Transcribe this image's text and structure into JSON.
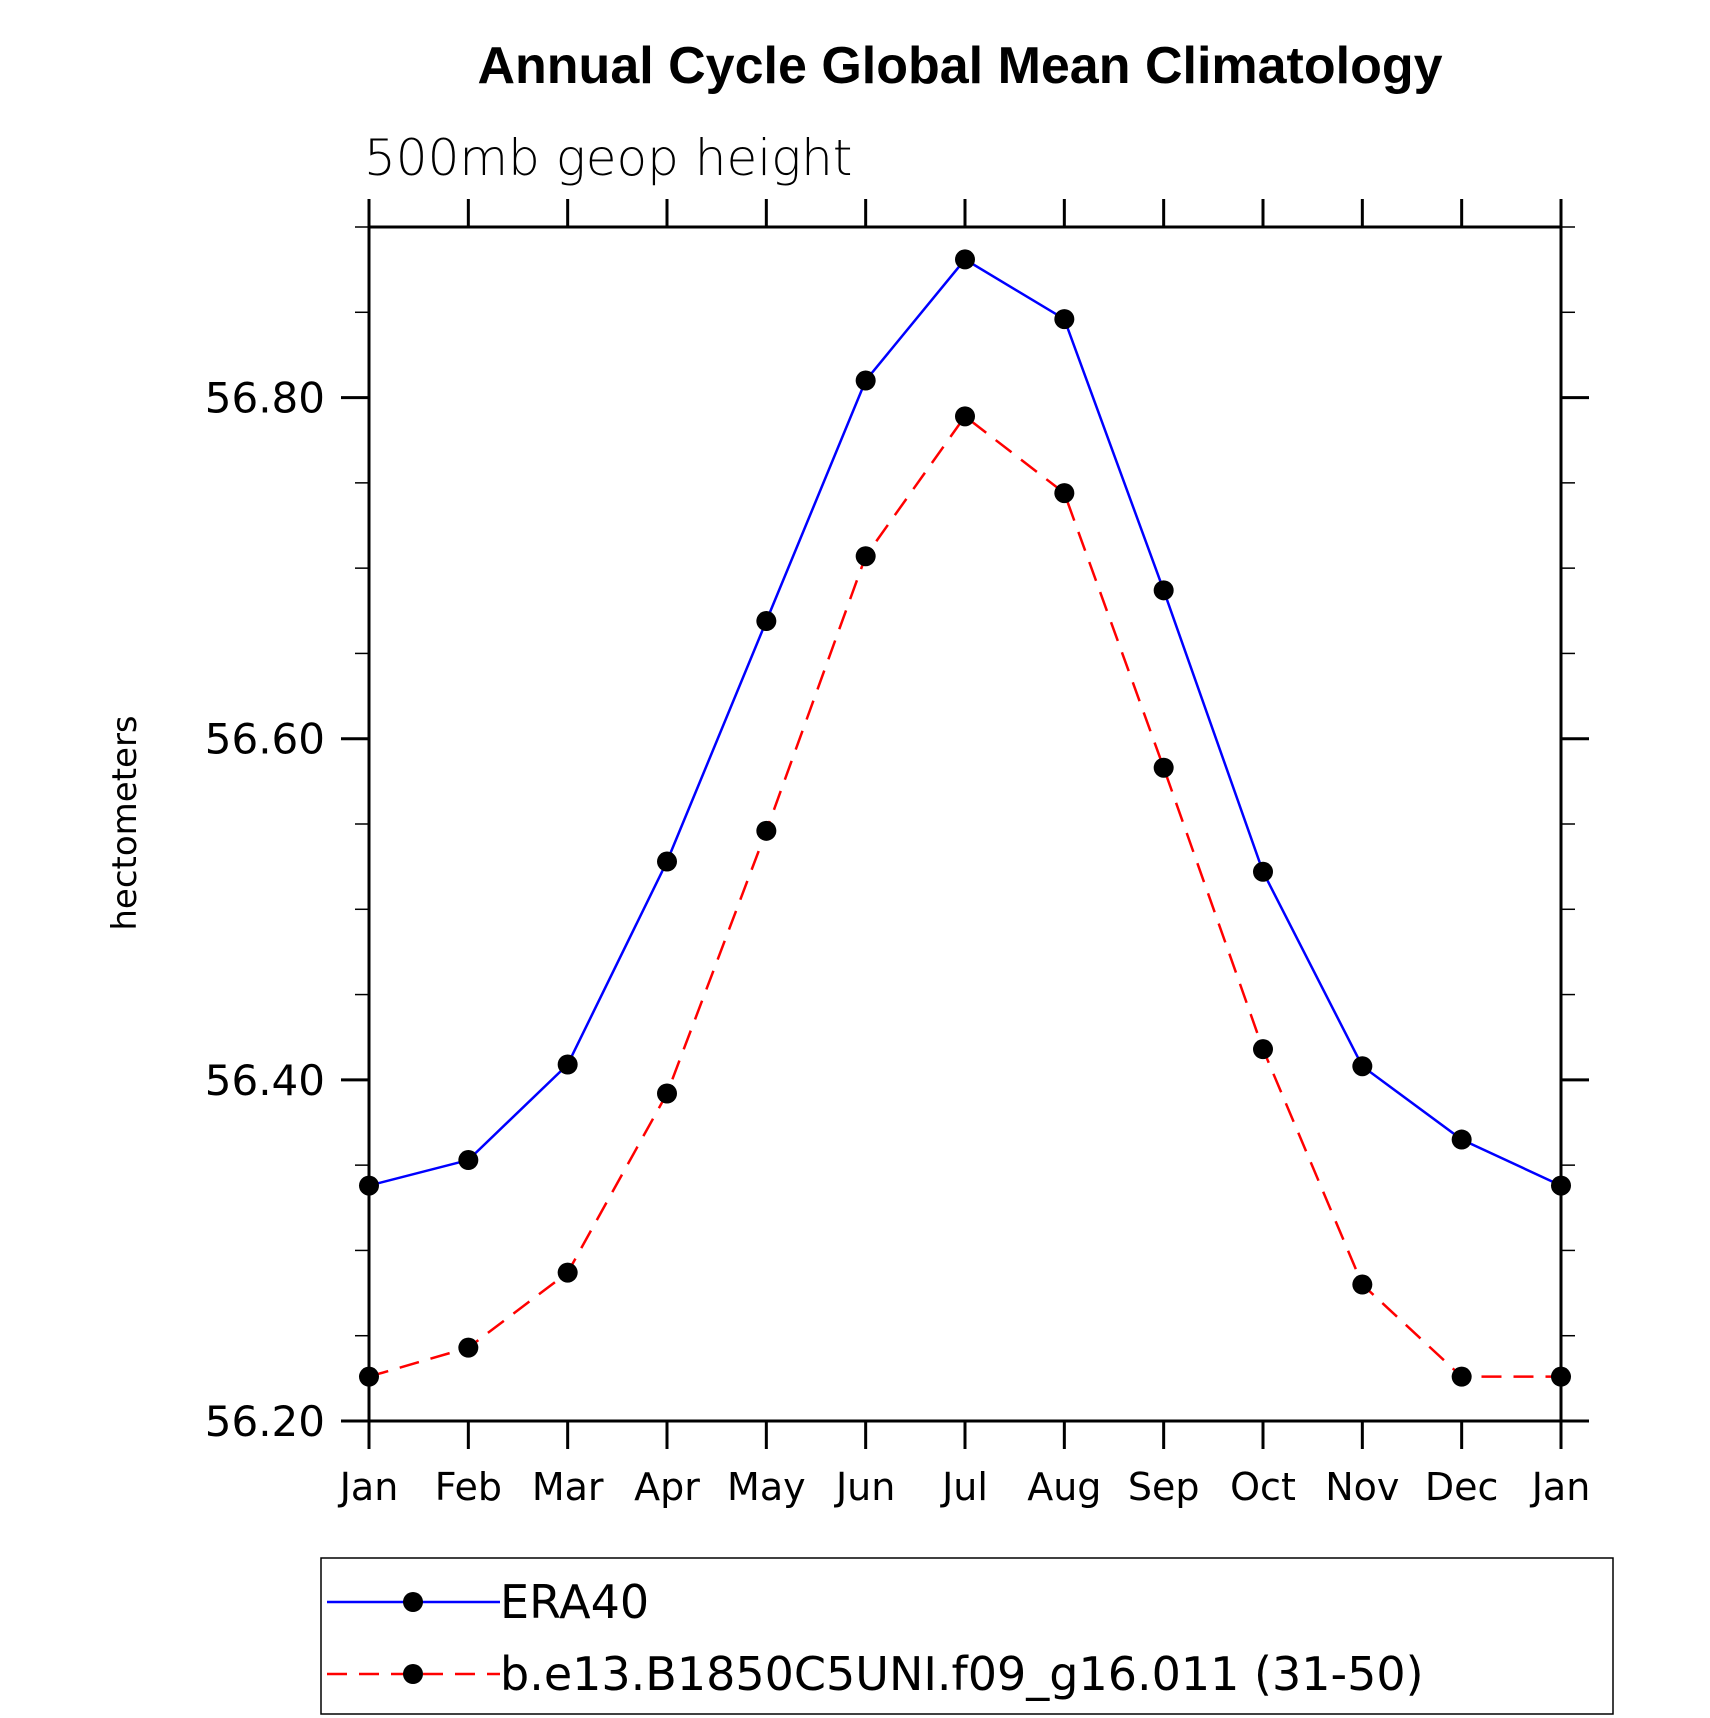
{
  "chart_data": {
    "type": "line",
    "title": "Annual Cycle Global Mean Climatology",
    "subtitle": "500mb geop height",
    "xlabel": "",
    "ylabel": "hectometers",
    "categories": [
      "Jan",
      "Feb",
      "Mar",
      "Apr",
      "May",
      "Jun",
      "Jul",
      "Aug",
      "Sep",
      "Oct",
      "Nov",
      "Dec",
      "Jan"
    ],
    "ylim": [
      56.2,
      56.9
    ],
    "yticks_major": [
      "56.20",
      "56.40",
      "56.60",
      "56.80"
    ],
    "yticks_major_values": [
      56.2,
      56.4,
      56.6,
      56.8
    ],
    "yticks_minor_step": 0.05,
    "grid": false,
    "legend_position": "bottom",
    "series": [
      {
        "name": "ERA40",
        "color": "#0000ff",
        "line_style": "solid",
        "marker": "filled-circle",
        "values": [
          56.338,
          56.353,
          56.409,
          56.528,
          56.669,
          56.81,
          56.881,
          56.846,
          56.687,
          56.522,
          56.408,
          56.365,
          56.338
        ]
      },
      {
        "name": "b.e13.B1850C5UNI.f09_g16.011 (31-50)",
        "color": "#ff0000",
        "line_style": "dashed",
        "marker": "filled-circle",
        "values": [
          56.226,
          56.243,
          56.287,
          56.392,
          56.546,
          56.707,
          56.789,
          56.744,
          56.583,
          56.418,
          56.28,
          56.226,
          56.226
        ]
      }
    ]
  }
}
